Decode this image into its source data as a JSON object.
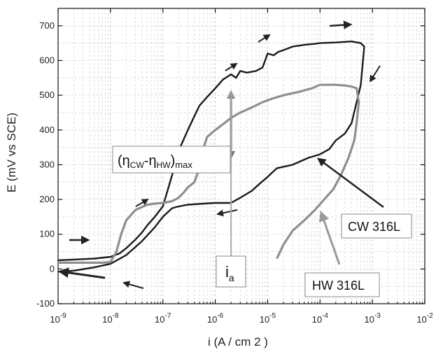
{
  "chart_data": {
    "type": "line",
    "title": "",
    "xlabel": "i (A / cm 2 )",
    "ylabel": "E (mV vs SCE)",
    "x_scale": "log",
    "xlim": [
      1e-09,
      0.01
    ],
    "ylim": [
      -100,
      750
    ],
    "grid": true,
    "x_ticks": [
      {
        "value": 1e-09,
        "base": "10",
        "exp": "-9"
      },
      {
        "value": 1e-08,
        "base": "10",
        "exp": "-8"
      },
      {
        "value": 1e-07,
        "base": "10",
        "exp": "-7"
      },
      {
        "value": 1e-06,
        "base": "10",
        "exp": "-6"
      },
      {
        "value": 1e-05,
        "base": "10",
        "exp": "-5"
      },
      {
        "value": 0.0001,
        "base": "10",
        "exp": "-4"
      },
      {
        "value": 0.001,
        "base": "10",
        "exp": "-3"
      },
      {
        "value": 0.01,
        "base": "10",
        "exp": "-2"
      }
    ],
    "y_ticks": [
      -100,
      0,
      100,
      200,
      300,
      400,
      500,
      600,
      700
    ],
    "series": [
      {
        "name": "CW 316L",
        "color": "#1a1a1a",
        "x": [
          1e-09,
          2e-09,
          5e-09,
          1e-08,
          1.5e-08,
          2e-08,
          3e-08,
          4e-08,
          5e-08,
          7e-08,
          1e-07,
          1.2e-07,
          1.5e-07,
          2e-07,
          3e-07,
          4e-07,
          5e-07,
          7e-07,
          1e-06,
          1.4e-06,
          2e-06,
          2.5e-06,
          3e-06,
          4e-06,
          6e-06,
          8e-06,
          1e-05,
          1.3e-05,
          1.6e-05,
          2e-05,
          3e-05,
          5e-05,
          8e-05,
          0.0001,
          0.0002,
          0.0004,
          0.0006,
          0.0007,
          0.0006,
          0.0005,
          0.0004,
          0.0003,
          0.0002,
          0.00015,
          0.0001,
          6e-05,
          3e-05,
          1.5e-05,
          1e-05,
          7e-06,
          5e-06,
          3e-06,
          2e-06,
          1e-06,
          6e-07,
          3e-07,
          2e-07,
          1.5e-07,
          1e-07,
          7e-08,
          4e-08,
          2e-08,
          1e-08,
          5e-09,
          2e-09,
          1e-09
        ],
        "y": [
          25,
          27,
          30,
          35,
          45,
          60,
          85,
          105,
          125,
          150,
          180,
          220,
          270,
          340,
          400,
          440,
          470,
          495,
          520,
          545,
          560,
          550,
          570,
          565,
          570,
          580,
          620,
          615,
          625,
          630,
          640,
          645,
          648,
          650,
          652,
          655,
          650,
          640,
          530,
          480,
          420,
          390,
          370,
          345,
          330,
          320,
          300,
          290,
          265,
          245,
          225,
          205,
          190,
          190,
          188,
          185,
          180,
          175,
          150,
          120,
          80,
          40,
          15,
          5,
          -5,
          -8
        ]
      },
      {
        "name": "HW 316L",
        "color": "#8f8f8f",
        "x": [
          1e-09,
          3e-09,
          7e-09,
          1e-08,
          1.3e-08,
          1.6e-08,
          2e-08,
          3e-08,
          5e-08,
          7e-08,
          1e-07,
          1.5e-07,
          2e-07,
          2.5e-07,
          3e-07,
          4e-07,
          5e-07,
          6e-07,
          7e-07,
          1e-06,
          1.5e-06,
          2e-06,
          3e-06,
          5e-06,
          8e-06,
          1.2e-05,
          2e-05,
          4e-05,
          7e-05,
          0.0001,
          0.0002,
          0.0003,
          0.0004,
          0.0005,
          0.00055,
          0.0005,
          0.00045,
          0.00035,
          0.00025,
          0.00018,
          0.00012,
          8e-05,
          5e-05,
          3e-05,
          2e-05,
          1.5e-05
        ],
        "y": [
          18,
          18,
          18,
          20,
          50,
          100,
          140,
          170,
          185,
          188,
          190,
          195,
          205,
          220,
          235,
          250,
          290,
          350,
          380,
          400,
          420,
          435,
          450,
          465,
          480,
          490,
          500,
          510,
          520,
          530,
          530,
          528,
          525,
          520,
          480,
          420,
          370,
          320,
          270,
          230,
          200,
          170,
          140,
          110,
          70,
          30
        ]
      }
    ],
    "annotations": {
      "eta_label_open": "(η",
      "eta_sub_cw": "CW",
      "eta_dash": "-η",
      "eta_sub_hw": "HW",
      "eta_close": ")",
      "eta_sub_max": "max",
      "ia_main": "i",
      "ia_sub": "a",
      "cw_label": "CW 316L",
      "hw_label": "HW 316L",
      "ia_x": 2e-06,
      "eta_top_y": 510,
      "eta_bottom_y": 320
    }
  }
}
